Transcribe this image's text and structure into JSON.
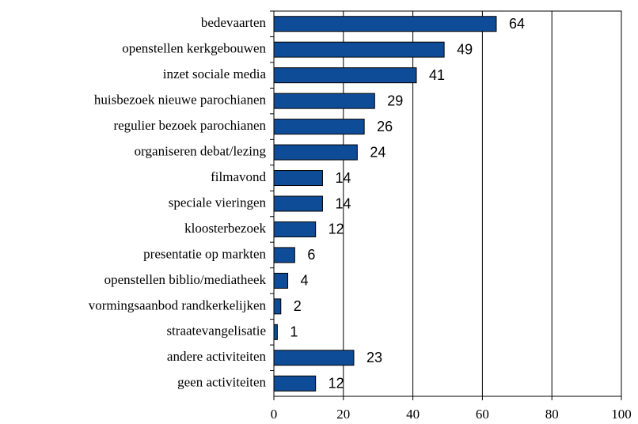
{
  "chart_data": {
    "type": "bar",
    "orientation": "horizontal",
    "categories": [
      "bedevaarten",
      "openstellen kerkgebouwen",
      "inzet sociale media",
      "huisbezoek nieuwe parochianen",
      "regulier bezoek parochianen",
      "organiseren debat/lezing",
      "filmavond",
      "speciale vieringen",
      "kloosterbezoek",
      "presentatie op markten",
      "openstellen biblio/mediatheek",
      "vormingsaanbod randkerkelijken",
      "straatevangelisatie",
      "andere activiteiten",
      "geen activiteiten"
    ],
    "values": [
      64,
      49,
      41,
      29,
      26,
      24,
      14,
      14,
      12,
      6,
      4,
      2,
      1,
      23,
      12
    ],
    "color": "#0f4c97",
    "xlim": [
      0,
      100
    ],
    "xticks": [
      0,
      20,
      40,
      60,
      80,
      100
    ],
    "grid": true
  }
}
